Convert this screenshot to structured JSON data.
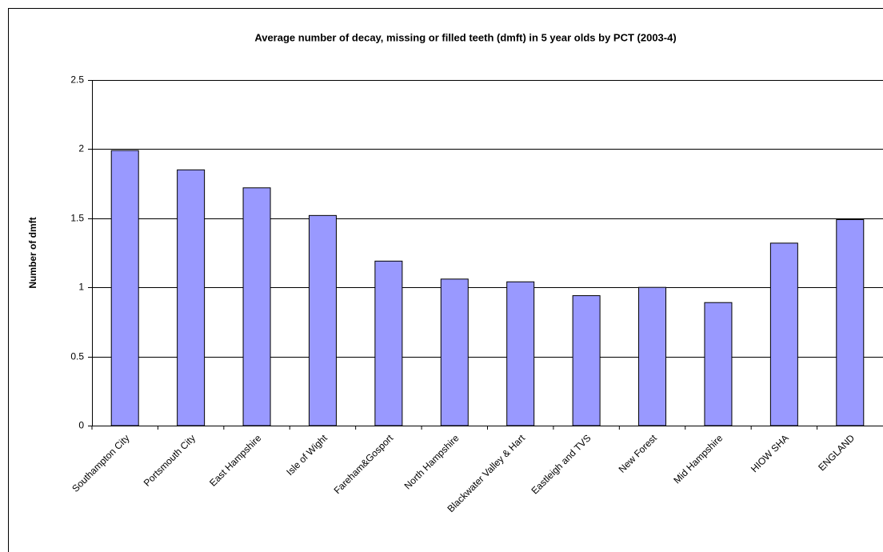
{
  "chart_data": {
    "type": "bar",
    "title": "Average number of decay, missing or filled teeth (dmft) in 5 year olds by PCT  (2003-4)",
    "y_label": "Number of dmft",
    "categories": [
      "Southampton City",
      "Portsmouth City",
      "East Hampshire",
      "Isle of Wight",
      "Fareham&Gosport",
      "North Hampshire",
      "Blackwater Valley & Hart",
      "Eastleigh and TVS",
      "New Forest",
      "Mid Hampshire",
      "HIOW SHA",
      "ENGLAND"
    ],
    "values": [
      1.99,
      1.85,
      1.72,
      1.52,
      1.19,
      1.06,
      1.04,
      0.94,
      1.0,
      0.89,
      1.32,
      1.49
    ],
    "color": "#9999ff",
    "ylim": [
      0,
      2.5
    ],
    "yticks": [
      0,
      0.5,
      1,
      1.5,
      2,
      2.5
    ],
    "grid": true
  }
}
